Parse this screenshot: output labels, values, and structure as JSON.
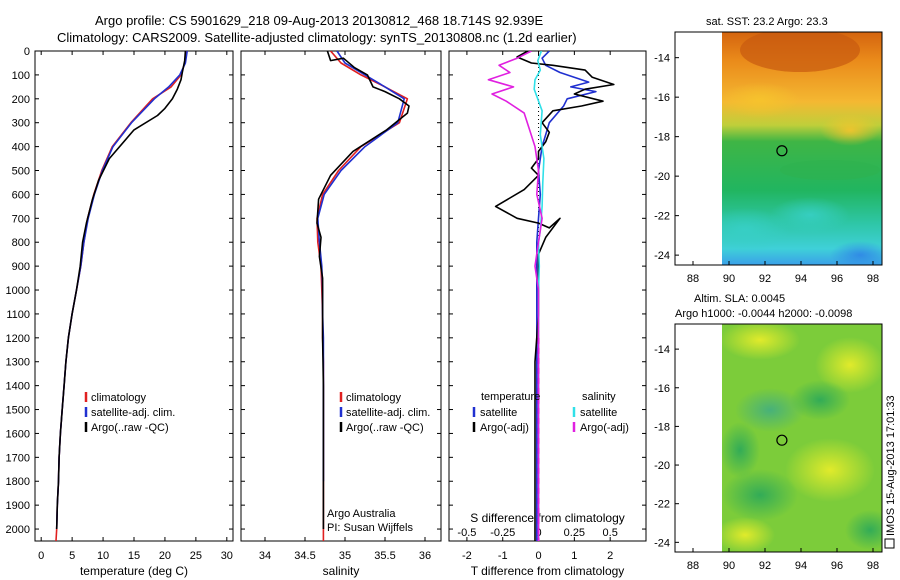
{
  "header": {
    "line1": "Argo profile: CS 5901629_218 09-Aug-2013 20130812_468 18.714S 92.939E",
    "line2": "Climatology: CARS2009. Satellite-adjusted climatology: synTS_20130808.nc (1.2d earlier)"
  },
  "colors": {
    "climatology": "#e02020",
    "satellite": "#2030d0",
    "argo": "#000000",
    "satellite_salinity": "#30e0e8",
    "argo_salinity_adj": "#e020e0"
  },
  "chart_data": [
    {
      "type": "line",
      "name": "temperature-profile",
      "xlabel": "temperature (deg C)",
      "ylabel": "",
      "xlim": [
        -1,
        31
      ],
      "ylim": [
        2050,
        0
      ],
      "xticks": [
        0,
        5,
        10,
        15,
        20,
        25,
        30
      ],
      "yticks": [
        0,
        100,
        200,
        300,
        400,
        500,
        600,
        700,
        800,
        900,
        1000,
        1100,
        1200,
        1300,
        1400,
        1500,
        1600,
        1700,
        1800,
        1900,
        2000
      ],
      "legend_position": "lower-center",
      "series": [
        {
          "name": "climatology",
          "color_key": "climatology",
          "x": [
            23.4,
            23.2,
            22.6,
            21.0,
            18.0,
            14.5,
            11.5,
            9.8,
            8.5,
            7.5,
            6.9,
            6.4,
            5.7,
            5.0,
            4.4,
            4.0,
            3.7,
            3.4,
            3.1,
            2.9,
            2.8,
            2.6,
            2.5,
            2.4
          ],
          "y": [
            0,
            50,
            100,
            150,
            200,
            300,
            400,
            500,
            600,
            700,
            800,
            900,
            1000,
            1100,
            1200,
            1300,
            1400,
            1500,
            1600,
            1700,
            1800,
            1900,
            2000,
            2050
          ]
        },
        {
          "name": "satellite-adj. clim.",
          "color_key": "satellite",
          "x": [
            23.6,
            23.3,
            22.4,
            20.6,
            18.3,
            14.6,
            11.6,
            9.9,
            8.6,
            7.6,
            6.9,
            6.4,
            5.7,
            5.0,
            4.4,
            4.0,
            3.7,
            3.4,
            3.1,
            2.9,
            2.8,
            2.6,
            2.5
          ],
          "y": [
            0,
            50,
            100,
            150,
            200,
            300,
            400,
            500,
            600,
            700,
            800,
            900,
            1000,
            1100,
            1200,
            1300,
            1400,
            1500,
            1600,
            1700,
            1800,
            1900,
            2000
          ]
        },
        {
          "name": "Argo(..raw -QC)",
          "color_key": "argo",
          "x": [
            23.3,
            23.2,
            22.8,
            22.6,
            22.0,
            21.2,
            20.0,
            18.8,
            15.0,
            11.0,
            9.3,
            8.3,
            7.3,
            6.7,
            6.3,
            5.7,
            5.0,
            4.4,
            4.0,
            3.7,
            3.4,
            3.1,
            2.9,
            2.8,
            2.6,
            2.5
          ],
          "y": [
            0,
            40,
            90,
            120,
            160,
            200,
            240,
            270,
            330,
            450,
            540,
            620,
            720,
            800,
            900,
            1000,
            1100,
            1200,
            1300,
            1400,
            1500,
            1600,
            1700,
            1800,
            1900,
            2000
          ]
        }
      ]
    },
    {
      "type": "line",
      "name": "salinity-profile",
      "xlabel": "salinity",
      "ylabel": "",
      "xlim": [
        33.7,
        36.2
      ],
      "ylim": [
        2050,
        0
      ],
      "xticks": [
        34,
        34.5,
        35,
        35.5,
        36
      ],
      "yticks": [
        0,
        100,
        200,
        300,
        400,
        500,
        600,
        700,
        800,
        900,
        1000,
        1100,
        1200,
        1300,
        1400,
        1500,
        1600,
        1700,
        1800,
        1900,
        2000
      ],
      "legend_position": "lower-right",
      "credit": {
        "line1": "Argo Australia",
        "line2": "PI: Susan Wijffels"
      },
      "series": [
        {
          "name": "climatology",
          "color_key": "climatology",
          "x": [
            34.82,
            34.95,
            35.2,
            35.5,
            35.78,
            35.68,
            35.2,
            34.92,
            34.72,
            34.65,
            34.66,
            34.7,
            34.71,
            34.72,
            34.72,
            34.73,
            34.73,
            34.73,
            34.73,
            34.73,
            34.73,
            34.73,
            34.73,
            34.73,
            34.73
          ],
          "y": [
            0,
            50,
            100,
            150,
            200,
            300,
            400,
            500,
            600,
            700,
            800,
            900,
            1000,
            1100,
            1200,
            1300,
            1400,
            1500,
            1600,
            1700,
            1800,
            1900,
            2000,
            2030,
            2050
          ]
        },
        {
          "name": "satellite-adj. clim.",
          "color_key": "satellite",
          "x": [
            34.9,
            35.0,
            35.25,
            35.5,
            35.74,
            35.66,
            35.25,
            34.95,
            34.74,
            34.66,
            34.68,
            34.71,
            34.72,
            34.72,
            34.73,
            34.73,
            34.73,
            34.73,
            34.73,
            34.73,
            34.73
          ],
          "y": [
            0,
            50,
            100,
            150,
            200,
            300,
            400,
            500,
            600,
            700,
            800,
            900,
            1000,
            1100,
            1200,
            1300,
            1400,
            1500,
            1600,
            1700,
            1800
          ]
        },
        {
          "name": "Argo(..raw -QC)",
          "color_key": "argo",
          "x": [
            34.78,
            34.82,
            34.98,
            35.12,
            35.28,
            35.35,
            35.5,
            35.68,
            35.8,
            35.78,
            35.52,
            35.1,
            34.82,
            34.67,
            34.65,
            34.7,
            34.68,
            34.72,
            34.72,
            34.72,
            34.73,
            34.73,
            34.73,
            34.73,
            34.73,
            34.73
          ],
          "y": [
            0,
            40,
            30,
            70,
            100,
            150,
            170,
            200,
            230,
            260,
            330,
            420,
            520,
            620,
            720,
            780,
            860,
            950,
            1050,
            1200,
            1400,
            1550,
            1700,
            1800,
            1900,
            2000
          ]
        }
      ]
    },
    {
      "type": "line",
      "name": "difference-profile",
      "xlabel": "T difference from climatology",
      "xlabel_top": "S difference from climatology",
      "ylabel": "",
      "xlim": [
        -2.5,
        3.0
      ],
      "ylim": [
        2050,
        0
      ],
      "xticks": [
        -2,
        -1,
        0,
        1,
        2
      ],
      "xticks_top": [
        {
          "value": -0.5,
          "label": "-0.5"
        },
        {
          "value": -0.25,
          "label": "-0.25"
        },
        {
          "value": 0,
          "label": "0"
        },
        {
          "value": 0.25,
          "label": "0.25"
        },
        {
          "value": 0.5,
          "label": "0.5"
        }
      ],
      "yticks": [
        0,
        100,
        200,
        300,
        400,
        500,
        600,
        700,
        800,
        900,
        1000,
        1100,
        1200,
        1300,
        1400,
        1500,
        1600,
        1700,
        1800,
        1900,
        2000
      ],
      "legend_position": "lower-center",
      "legend_headers": {
        "temperature": "temperature",
        "salinity": "salinity"
      },
      "series": [
        {
          "name": "satellite",
          "group": "temperature",
          "color_key": "satellite",
          "x": [
            0.3,
            0.1,
            0.2,
            0.6,
            1.4,
            0.9,
            1.6,
            0.8,
            0.7,
            0.3,
            0.1,
            0.0,
            0.05,
            0.0,
            -0.05,
            -0.05,
            -0.05,
            -0.05,
            -0.05,
            -0.05,
            -0.05
          ],
          "y": [
            0,
            30,
            60,
            90,
            130,
            150,
            170,
            200,
            230,
            300,
            400,
            500,
            600,
            700,
            800,
            1000,
            1200,
            1400,
            1600,
            1800,
            2050
          ]
        },
        {
          "name": "Argo(-adj)",
          "group": "temperature",
          "color_key": "argo",
          "x": [
            -0.3,
            -0.6,
            -0.2,
            0.4,
            1.3,
            1.5,
            2.1,
            1.3,
            1.0,
            1.8,
            1.2,
            0.4,
            0.1,
            0.3,
            0.2,
            0.0,
            0.0,
            -0.2,
            0.0,
            -0.4,
            -1.2,
            -0.6,
            0.0,
            0.3,
            0.6,
            0.2,
            0.0,
            0.0,
            0.0,
            -0.1,
            -0.1,
            -0.1
          ],
          "y": [
            0,
            25,
            50,
            60,
            80,
            110,
            140,
            160,
            180,
            210,
            230,
            250,
            300,
            340,
            380,
            420,
            450,
            490,
            520,
            580,
            650,
            700,
            720,
            740,
            700,
            780,
            850,
            950,
            1100,
            1300,
            1600,
            2050
          ]
        },
        {
          "name": "satellite",
          "group": "salinity",
          "color_key": "satellite_salinity",
          "x": [
            0.08,
            -0.02,
            0.05,
            -0.1,
            -0.12,
            0.1,
            0.05,
            0.15,
            0.12,
            0.1,
            0.05,
            0.0,
            0.02,
            0.0,
            0.0,
            0.0,
            0.0,
            0.0
          ],
          "y": [
            0,
            40,
            80,
            120,
            160,
            250,
            350,
            450,
            550,
            650,
            750,
            800,
            900,
            1000,
            1200,
            1500,
            1800,
            2050
          ]
        },
        {
          "name": "Argo(-adj)",
          "group": "salinity",
          "color_key": "argo_salinity_adj",
          "x": [
            -0.2,
            -0.6,
            -1.1,
            -0.8,
            -1.4,
            -0.7,
            -1.3,
            -0.9,
            -0.4,
            -0.1,
            0.0,
            -0.05,
            0.1,
            0.0,
            -0.1,
            0.0,
            0.0,
            0.0,
            0.0,
            0.0
          ],
          "y": [
            0,
            30,
            60,
            90,
            120,
            150,
            180,
            210,
            260,
            400,
            500,
            600,
            700,
            800,
            900,
            1000,
            1200,
            1500,
            1800,
            2050
          ]
        }
      ]
    },
    {
      "type": "heatmap",
      "name": "sst-map",
      "title": "sat. SST: 23.2  Argo: 23.3",
      "xlim": [
        87,
        98.5
      ],
      "ylim": [
        -24.5,
        -12.7
      ],
      "xticks": [
        88,
        90,
        92,
        94,
        96,
        98
      ],
      "yticks": [
        -14,
        -16,
        -18,
        -20,
        -22,
        -24
      ],
      "marker": {
        "x": 92.939,
        "y": -18.714
      }
    },
    {
      "type": "heatmap",
      "name": "sla-map",
      "title_line1": "Altim. SLA: 0.0045",
      "title_line2": "Argo h1000: -0.0044 h2000: -0.0098",
      "xlim": [
        87,
        98.5
      ],
      "ylim": [
        -24.5,
        -12.7
      ],
      "xticks": [
        88,
        90,
        92,
        94,
        96,
        98
      ],
      "yticks": [
        -14,
        -16,
        -18,
        -20,
        -22,
        -24
      ],
      "marker": {
        "x": 92.939,
        "y": -18.714
      }
    }
  ],
  "footer": {
    "stamp": "IMOS 15-Aug-2013 17:01:33",
    "stamp_icon": "imos-logo-icon"
  }
}
